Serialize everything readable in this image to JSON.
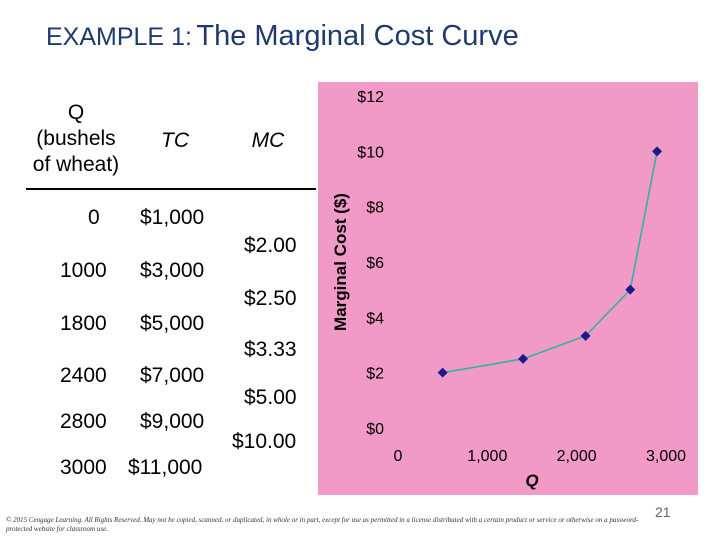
{
  "slide": {
    "title_prefix": "EXAMPLE 1:",
    "title_main": "The Marginal Cost Curve",
    "footer": "© 2015 Cengage Learning. All Rights Reserved. May not be copied, scanned, or duplicated, in whole or in part, except for use as permitted in a license distributed with a certain product or service or otherwise on a password-protected website for classroom use.",
    "page_number": "21"
  },
  "table": {
    "headers": {
      "q_line1": "Q",
      "q_line2": "(bushels",
      "q_line3": "of wheat)",
      "tc": "TC",
      "mc": "MC"
    },
    "rows": [
      {
        "q": "0",
        "tc": "$1,000"
      },
      {
        "q": "1000",
        "tc": "$3,000"
      },
      {
        "q": "1800",
        "tc": "$5,000"
      },
      {
        "q": "2400",
        "tc": "$7,000"
      },
      {
        "q": "2800",
        "tc": "$9,000"
      },
      {
        "q": "3000",
        "tc": "$11,000"
      }
    ],
    "mc_values": [
      "$2.00",
      "$2.50",
      "$3.33",
      "$5.00",
      "$10.00"
    ]
  },
  "chart_data": {
    "type": "line",
    "x": [
      500,
      1400,
      2100,
      2600,
      2900
    ],
    "values": [
      2.0,
      2.5,
      3.33,
      5.0,
      10.0
    ],
    "xlabel": "Q",
    "ylabel": "Marginal Cost ($)",
    "xlim": [
      0,
      3000
    ],
    "ylim": [
      0,
      12
    ],
    "xticks": [
      0,
      1000,
      2000,
      3000
    ],
    "xtick_labels": [
      "0",
      "1,000",
      "2,000",
      "3,000"
    ],
    "yticks": [
      0,
      2,
      4,
      6,
      8,
      10,
      12
    ],
    "ytick_labels": [
      "$0",
      "$2",
      "$4",
      "$6",
      "$8",
      "$10",
      "$12"
    ],
    "grid": false,
    "colors": {
      "line": "#2fb59a",
      "marker": "#1a1a8c",
      "panel": "#f29ac7"
    }
  }
}
